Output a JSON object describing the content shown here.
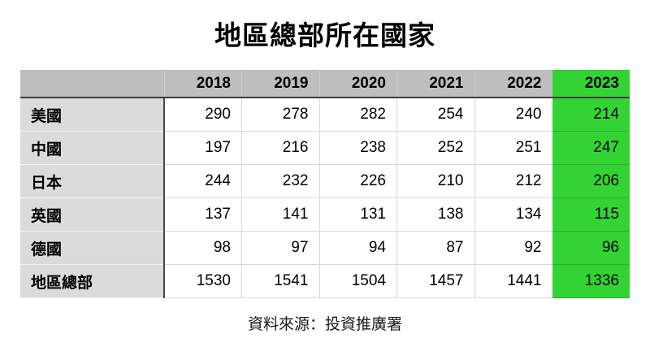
{
  "chart_data": {
    "type": "table",
    "title": "地區總部所在國家",
    "columns": [
      "",
      "2018",
      "2019",
      "2020",
      "2021",
      "2022",
      "2023"
    ],
    "rows": [
      {
        "label": "美國",
        "values": [
          290,
          278,
          282,
          254,
          240,
          214
        ]
      },
      {
        "label": "中國",
        "values": [
          197,
          216,
          238,
          252,
          251,
          247
        ]
      },
      {
        "label": "日本",
        "values": [
          244,
          232,
          226,
          210,
          212,
          206
        ]
      },
      {
        "label": "英國",
        "values": [
          137,
          141,
          131,
          138,
          134,
          115
        ]
      },
      {
        "label": "德國",
        "values": [
          98,
          97,
          94,
          87,
          92,
          96
        ]
      },
      {
        "label": "地區總部",
        "values": [
          1530,
          1541,
          1504,
          1457,
          1441,
          1336
        ]
      }
    ],
    "highlight_column": "2023",
    "source": "資料來源：投資推廣署",
    "colors": {
      "highlight_green": "#33d334",
      "header_gray": "#bebebe",
      "label_gray": "#dbdbdb",
      "header_underline": "#3c3c3c",
      "cell_border": "#d9d9d9"
    },
    "layout_hints": {
      "highlight_position": "last-column",
      "value_alignment": "right",
      "label_alignment": "left"
    }
  }
}
